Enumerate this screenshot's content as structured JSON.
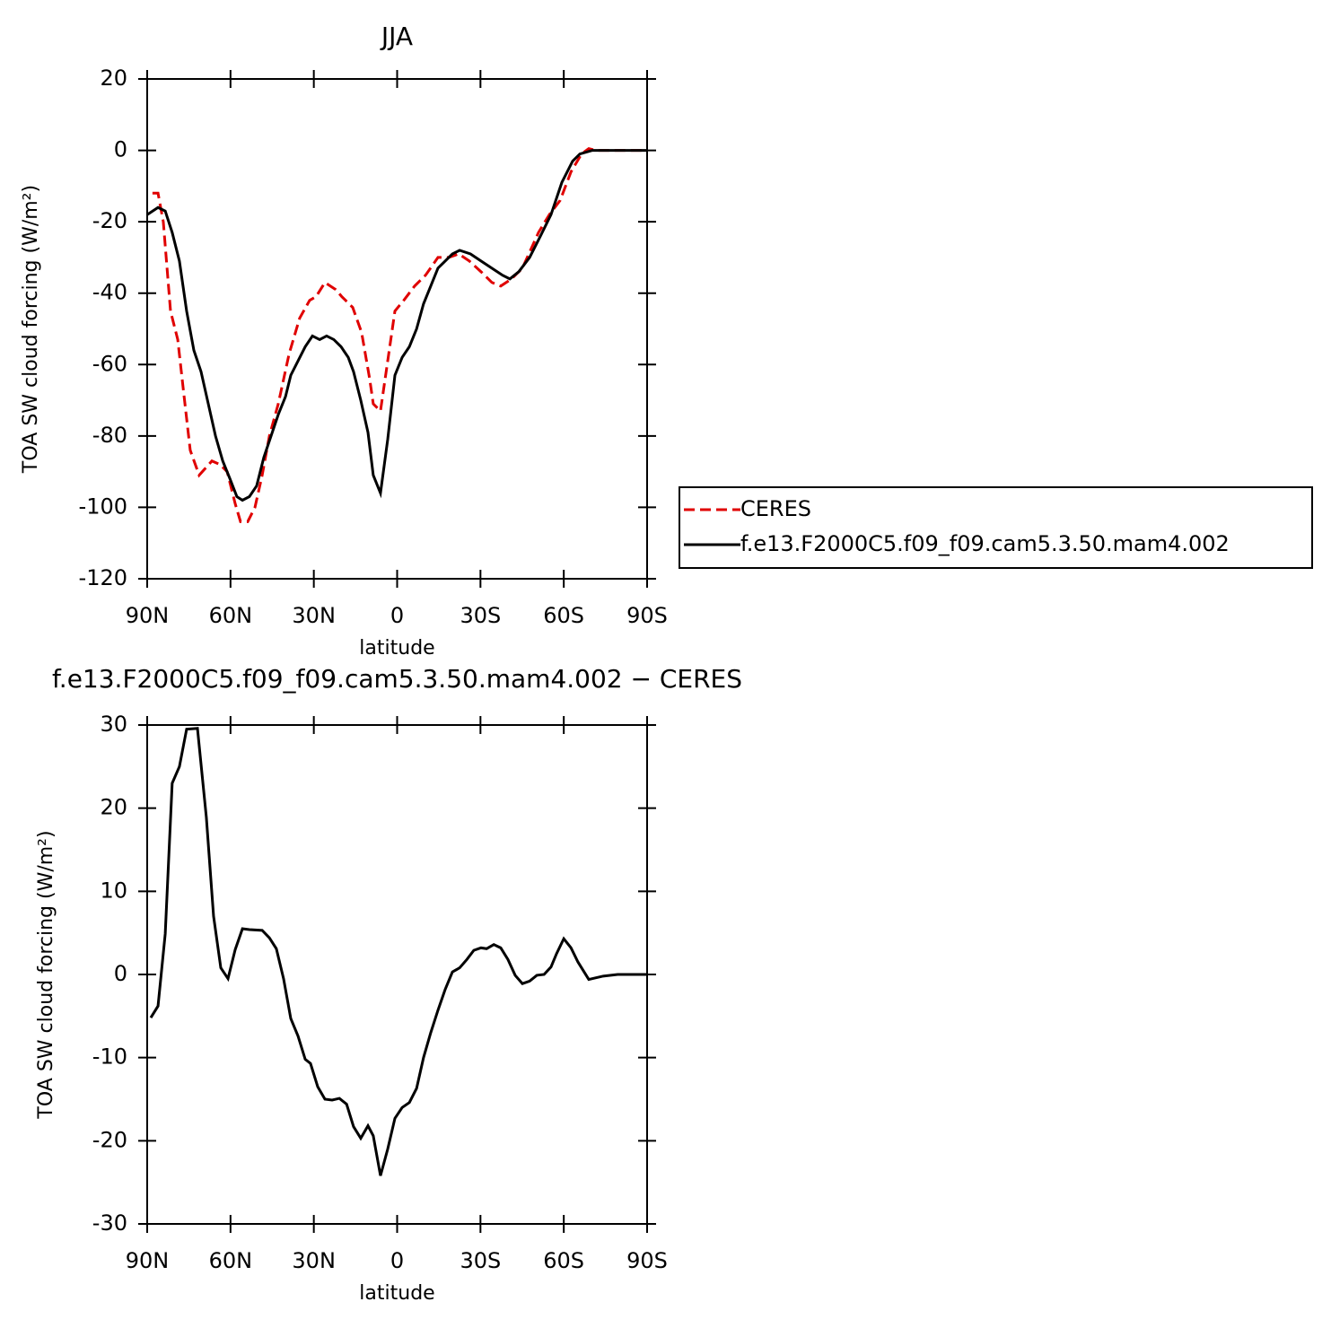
{
  "chart_data": [
    {
      "type": "line",
      "title": "JJA",
      "xlabel": "latitude",
      "ylabel": "TOA SW cloud forcing (W/m²)",
      "xlim": [
        90,
        -90
      ],
      "ylim": [
        -120,
        20
      ],
      "xticks": [
        {
          "value": 90,
          "label": "90N"
        },
        {
          "value": 60,
          "label": "60N"
        },
        {
          "value": 30,
          "label": "30N"
        },
        0,
        {
          "value": -30,
          "label": "30S"
        },
        {
          "value": -60,
          "label": "60S"
        },
        {
          "value": -90,
          "label": "90S"
        }
      ],
      "yticks": [
        -120,
        -100,
        -80,
        -60,
        -40,
        -20,
        0,
        20
      ],
      "legend": "right",
      "series": [
        {
          "name": "CERES",
          "color": "#e00000",
          "dash": true,
          "x": [
            88.1,
            86.1,
            84.2,
            81.6,
            79.0,
            76.7,
            74.5,
            71.3,
            66.7,
            63.8,
            61.2,
            58.3,
            56.4,
            53.8,
            51.2,
            48.6,
            46.0,
            42.8,
            38.9,
            35.1,
            31.5,
            29.2,
            26.0,
            22.1,
            19.9,
            16.0,
            12.8,
            9.9,
            8.6,
            6.0,
            3.4,
            0.8,
            -2.4,
            -6.3,
            -10.2,
            -14.7,
            -18.6,
            -22.2,
            -26.0,
            -30.2,
            -34.1,
            -37.3,
            -41.2,
            -45.1,
            -50.9,
            -54.8,
            -58.7,
            -62.6,
            -66.4,
            -69.0,
            -71.6,
            -90.0
          ],
          "values": [
            -12,
            -12,
            -20,
            -45,
            -53,
            -69,
            -84,
            -91,
            -87,
            -88,
            -90,
            -99,
            -104,
            -104,
            -100,
            -91,
            -80,
            -71,
            -57,
            -47,
            -42,
            -41,
            -37,
            -39,
            -41,
            -44,
            -51,
            -64,
            -71,
            -73,
            -59,
            -45,
            -42,
            -38,
            -35,
            -30,
            -30,
            -29,
            -31,
            -34,
            -37,
            -38,
            -36,
            -33,
            -23,
            -18,
            -14,
            -6,
            -1,
            0.5,
            0,
            0
          ]
        },
        {
          "name": "f.e13.F2000C5.f09_f09.cam5.3.50.mam4.002",
          "color": "#000000",
          "dash": false,
          "x": [
            90,
            86.1,
            83.5,
            81.0,
            78.4,
            75.8,
            73.2,
            70.6,
            68.0,
            65.4,
            62.8,
            60.2,
            57.7,
            55.7,
            53.2,
            50.6,
            48.0,
            45.4,
            42.8,
            40.2,
            38.3,
            35.7,
            33.1,
            30.5,
            27.9,
            25.4,
            22.8,
            20.2,
            17.6,
            15.7,
            13.1,
            10.5,
            8.6,
            6.0,
            3.4,
            0.8,
            -1.8,
            -4.4,
            -7.0,
            -9.5,
            -12.1,
            -14.7,
            -17.3,
            -19.9,
            -22.5,
            -26.4,
            -30.2,
            -34.1,
            -38.0,
            -40.6,
            -43.8,
            -47.7,
            -51.6,
            -55.4,
            -59.3,
            -63.2,
            -65.8,
            -70.3,
            -90.0
          ],
          "values": [
            -18,
            -16,
            -17,
            -23,
            -31,
            -45,
            -56,
            -62,
            -71,
            -80,
            -87,
            -92,
            -97,
            -98,
            -97,
            -94,
            -86,
            -80,
            -74,
            -69,
            -63,
            -59,
            -55,
            -52,
            -53,
            -52,
            -53,
            -55,
            -58,
            -62,
            -70,
            -79,
            -91,
            -96,
            -81,
            -63,
            -58,
            -55,
            -50,
            -43,
            -38,
            -33,
            -31,
            -29,
            -28,
            -29,
            -31,
            -33,
            -35,
            -36,
            -34,
            -30,
            -24,
            -18,
            -9,
            -3,
            -1,
            0,
            0
          ]
        }
      ]
    },
    {
      "type": "line",
      "title": "f.e13.F2000C5.f09_f09.cam5.3.50.mam4.002 − CERES",
      "xlabel": "latitude",
      "ylabel": "TOA SW cloud forcing (W/m²)",
      "xlim": [
        90,
        -90
      ],
      "ylim": [
        -30,
        30
      ],
      "xticks": [
        {
          "value": 90,
          "label": "90N"
        },
        {
          "value": 60,
          "label": "60N"
        },
        {
          "value": 30,
          "label": "30N"
        },
        0,
        {
          "value": -30,
          "label": "30S"
        },
        {
          "value": -60,
          "label": "60S"
        },
        {
          "value": -90,
          "label": "90S"
        }
      ],
      "yticks": [
        -30,
        -20,
        -10,
        0,
        10,
        20,
        30
      ],
      "color": "#000000",
      "x": [
        88.7,
        86.1,
        83.5,
        81.0,
        78.4,
        75.8,
        71.9,
        68.7,
        66.1,
        63.5,
        60.9,
        58.3,
        55.7,
        53.2,
        48.6,
        46.0,
        43.5,
        40.9,
        38.3,
        35.7,
        33.1,
        31.2,
        28.6,
        26.0,
        23.4,
        20.8,
        18.2,
        15.7,
        13.1,
        10.5,
        8.6,
        6.0,
        3.4,
        0.8,
        -1.8,
        -4.4,
        -7.0,
        -9.5,
        -12.1,
        -14.7,
        -17.3,
        -19.9,
        -22.5,
        -25.1,
        -27.6,
        -30.2,
        -32.2,
        -34.8,
        -37.3,
        -39.9,
        -42.5,
        -45.1,
        -47.7,
        -50.3,
        -52.9,
        -55.4,
        -57.4,
        -60.0,
        -62.6,
        -65.1,
        -69.0,
        -71.6,
        -74.2,
        -79.4,
        -90.0
      ],
      "values": [
        -5.2,
        -3.8,
        4.9,
        23,
        25,
        29.5,
        29.6,
        18.9,
        7,
        0.8,
        -0.5,
        3,
        5.5,
        5.4,
        5.3,
        4.4,
        3.1,
        -0.5,
        -5.3,
        -7.4,
        -10.2,
        -10.7,
        -13.5,
        -15,
        -15.1,
        -14.9,
        -15.6,
        -18.3,
        -19.7,
        -18.2,
        -19.4,
        -24.2,
        -21,
        -17.3,
        -16,
        -15.4,
        -13.7,
        -10,
        -7,
        -4.3,
        -1.8,
        0.3,
        0.8,
        1.8,
        2.9,
        3.2,
        3.1,
        3.6,
        3.2,
        1.8,
        -0.1,
        -1.1,
        -0.8,
        -0.1,
        0,
        0.9,
        2.5,
        4.3,
        3.2,
        1.5,
        -0.6,
        -0.4,
        -0.2,
        0,
        0
      ]
    }
  ]
}
